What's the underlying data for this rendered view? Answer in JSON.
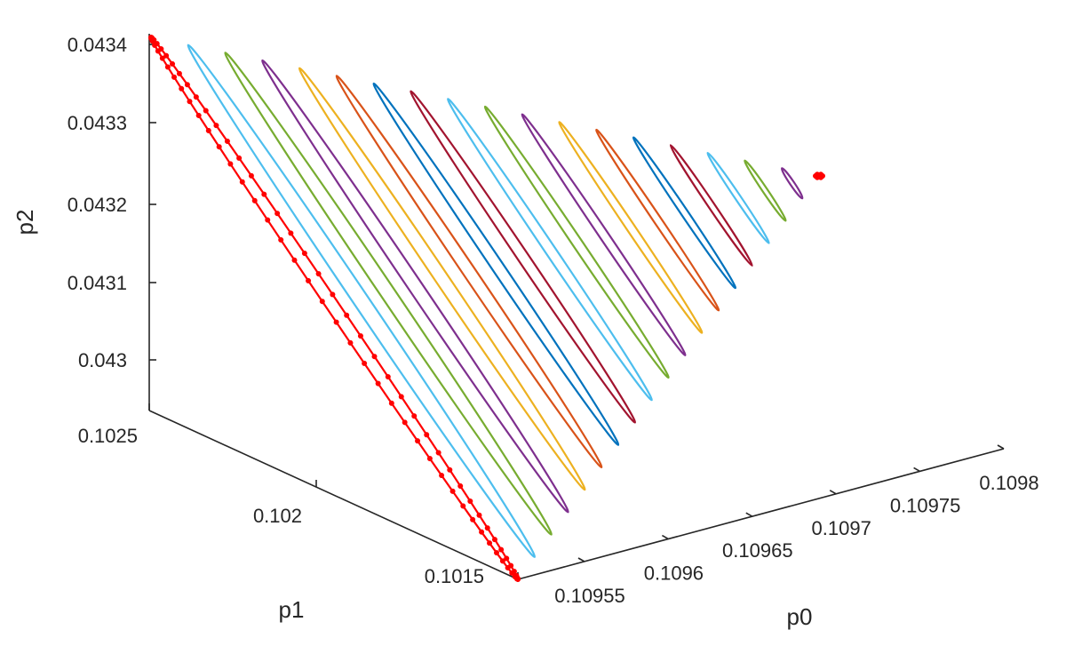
{
  "chart_data": {
    "type": "line",
    "dimensions": "3d",
    "xlabel": "p0",
    "ylabel": "p1",
    "zlabel": "p2",
    "x_ticks": [
      "0.10955",
      "0.1096",
      "0.10965",
      "0.1097",
      "0.10975",
      "0.1098"
    ],
    "y_ticks": [
      "0.1015",
      "0.102",
      "0.1025"
    ],
    "z_ticks": [
      "0.043",
      "0.0431",
      "0.0432",
      "0.0433",
      "0.0434"
    ],
    "grid": false,
    "legend": "none",
    "series": [
      {
        "color": "#ff0000",
        "marker": "dot",
        "loop": 0
      },
      {
        "color": "#4dbeee",
        "loop": 1
      },
      {
        "color": "#77ac30",
        "loop": 2
      },
      {
        "color": "#7e2f8e",
        "loop": 3
      },
      {
        "color": "#edb120",
        "loop": 4
      },
      {
        "color": "#d95319",
        "loop": 5
      },
      {
        "color": "#0072bd",
        "loop": 6
      },
      {
        "color": "#a2142f",
        "loop": 7
      },
      {
        "color": "#4dbeee",
        "loop": 8
      },
      {
        "color": "#77ac30",
        "loop": 9
      },
      {
        "color": "#7e2f8e",
        "loop": 10
      },
      {
        "color": "#edb120",
        "loop": 11
      },
      {
        "color": "#d95319",
        "loop": 12
      },
      {
        "color": "#0072bd",
        "loop": 13
      },
      {
        "color": "#a2142f",
        "loop": 14
      },
      {
        "color": "#4dbeee",
        "loop": 15
      },
      {
        "color": "#77ac30",
        "loop": 16
      },
      {
        "color": "#7e2f8e",
        "loop": 17
      },
      {
        "color": "#ff0000",
        "marker": "dot",
        "loop": 18
      }
    ]
  }
}
